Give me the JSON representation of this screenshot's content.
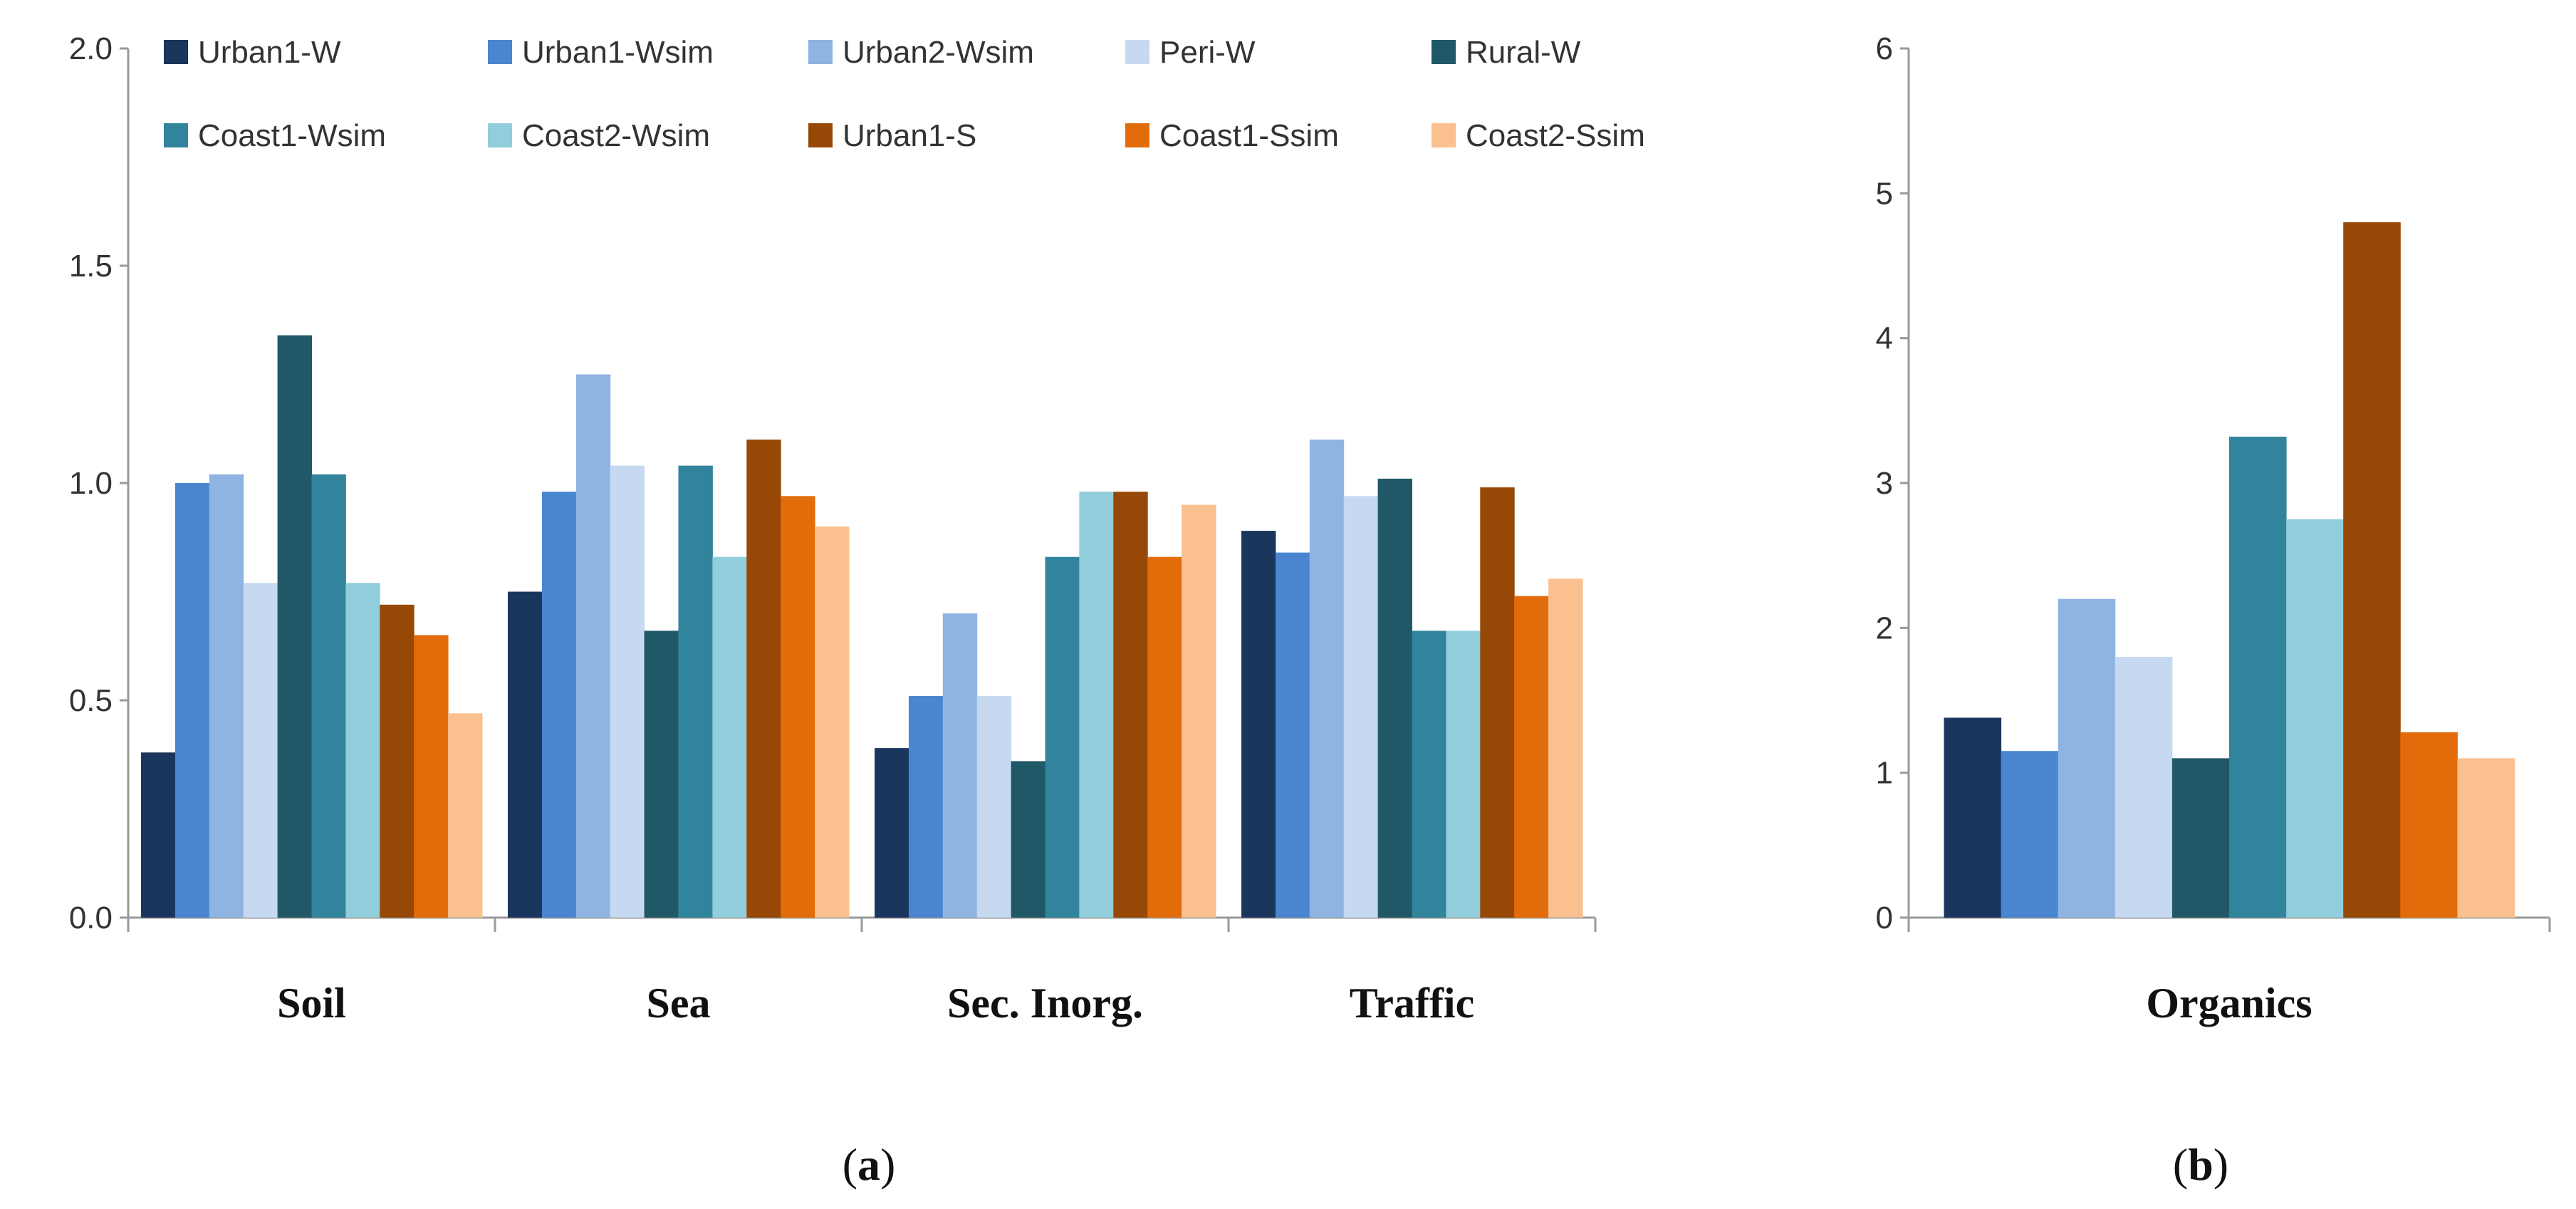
{
  "chart_data": [
    {
      "panel": "a",
      "type": "bar",
      "title": "",
      "xlabel": "",
      "ylabel": "",
      "ylim": [
        0,
        2.0
      ],
      "yticks": [
        "0.0",
        "0.5",
        "1.0",
        "1.5",
        "2.0"
      ],
      "grid": false,
      "legend_position": "top",
      "categories": [
        "Soil",
        "Sea",
        "Sec. Inorg.",
        "Traffic"
      ],
      "series": [
        {
          "name": "Urban1-W",
          "color": "#1b365d",
          "values": [
            0.38,
            0.75,
            0.39,
            0.89
          ]
        },
        {
          "name": "Urban1-Wsim",
          "color": "#4a86d0",
          "values": [
            1.0,
            0.98,
            0.51,
            0.84
          ]
        },
        {
          "name": "Urban2-Wsim",
          "color": "#8fb3e3",
          "values": [
            1.02,
            1.25,
            0.7,
            1.1
          ]
        },
        {
          "name": "Peri-W",
          "color": "#c6d9f1",
          "values": [
            0.77,
            1.04,
            0.51,
            0.97
          ]
        },
        {
          "name": "Rural-W",
          "color": "#215868",
          "values": [
            1.34,
            0.66,
            0.36,
            1.01
          ]
        },
        {
          "name": "Coast1-Wsim",
          "color": "#31849b",
          "values": [
            1.02,
            1.04,
            0.83,
            0.66
          ]
        },
        {
          "name": "Coast2-Wsim",
          "color": "#92cddc",
          "values": [
            0.77,
            0.83,
            0.98,
            0.66
          ]
        },
        {
          "name": "Urban1-S",
          "color": "#974806",
          "values": [
            0.72,
            1.1,
            0.98,
            0.99
          ]
        },
        {
          "name": "Coast1-Ssim",
          "color": "#e36c0a",
          "values": [
            0.65,
            0.97,
            0.83,
            0.74
          ]
        },
        {
          "name": "Coast2-Ssim",
          "color": "#fac08f",
          "values": [
            0.47,
            0.9,
            0.95,
            0.78
          ]
        }
      ]
    },
    {
      "panel": "b",
      "type": "bar",
      "title": "",
      "xlabel": "",
      "ylabel": "",
      "ylim": [
        0,
        6
      ],
      "yticks": [
        "0",
        "1",
        "2",
        "3",
        "4",
        "5",
        "6"
      ],
      "grid": false,
      "categories": [
        "Organics"
      ],
      "series": [
        {
          "name": "Urban1-W",
          "color": "#1b365d",
          "values": [
            1.38
          ]
        },
        {
          "name": "Urban1-Wsim",
          "color": "#4a86d0",
          "values": [
            1.15
          ]
        },
        {
          "name": "Urban2-Wsim",
          "color": "#8fb3e3",
          "values": [
            2.2
          ]
        },
        {
          "name": "Peri-W",
          "color": "#c6d9f1",
          "values": [
            1.8
          ]
        },
        {
          "name": "Rural-W",
          "color": "#215868",
          "values": [
            1.1
          ]
        },
        {
          "name": "Coast1-Wsim",
          "color": "#31849b",
          "values": [
            3.32
          ]
        },
        {
          "name": "Coast2-Wsim",
          "color": "#92cddc",
          "values": [
            2.75
          ]
        },
        {
          "name": "Urban1-S",
          "color": "#974806",
          "values": [
            4.8
          ]
        },
        {
          "name": "Coast1-Ssim",
          "color": "#e36c0a",
          "values": [
            1.28
          ]
        },
        {
          "name": "Coast2-Ssim",
          "color": "#fac08f",
          "values": [
            1.1
          ]
        }
      ]
    }
  ],
  "panel_labels": {
    "a": {
      "open": "(",
      "letter": "a",
      "close": ")"
    },
    "b": {
      "open": "(",
      "letter": "b",
      "close": ")"
    }
  }
}
